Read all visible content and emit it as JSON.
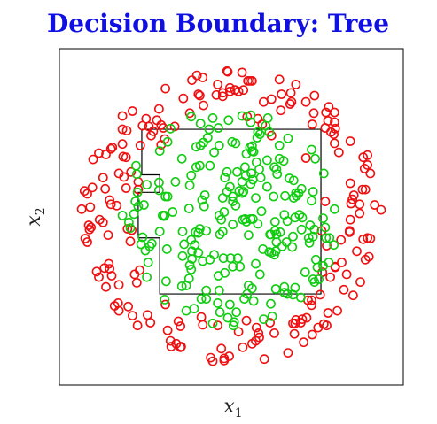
{
  "chart_data": {
    "type": "scatter",
    "title": "Decision Boundary: Tree",
    "xlabel": "x",
    "xlabel_sub": "1",
    "ylabel": "x",
    "ylabel_sub": "2",
    "xlim": [
      -2.4,
      2.4
    ],
    "ylim": [
      -2.4,
      2.4
    ],
    "ticks_visible": false,
    "grid": false,
    "colors": {
      "class_red": "#ee1111",
      "class_green": "#11cc11",
      "title": "#1010e0"
    },
    "decision_boundary": {
      "label": "tree region (green class inside)",
      "polygon": [
        [
          -1.25,
          1.25
        ],
        [
          1.25,
          1.25
        ],
        [
          1.25,
          -1.1
        ],
        [
          -1.0,
          -1.1
        ],
        [
          -1.0,
          -0.3
        ],
        [
          -1.3,
          -0.3
        ],
        [
          -1.3,
          0.35
        ],
        [
          -1.0,
          0.35
        ],
        [
          -1.0,
          0.6
        ],
        [
          -1.25,
          0.6
        ],
        [
          -1.25,
          1.25
        ]
      ]
    },
    "series": [
      {
        "color": "#ee1111",
        "values": []
      },
      {
        "color": "#11cc11",
        "values": []
      }
    ],
    "generation": {
      "red": {
        "n": 210,
        "r_min": 1.25,
        "r_max": 2.1,
        "seed": 7
      },
      "green": {
        "n": 230,
        "r_min": 0.0,
        "r_max": 1.55,
        "seed": 13
      }
    }
  }
}
